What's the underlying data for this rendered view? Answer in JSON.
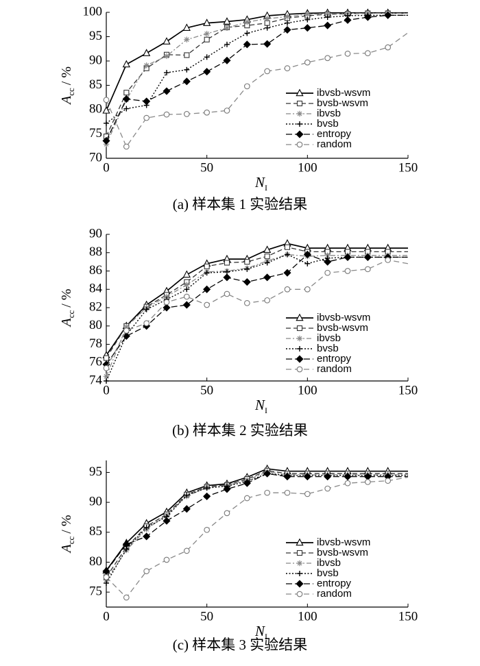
{
  "chart_data": [
    {
      "type": "line",
      "caption": "(a) 样本集 1 实验结果",
      "ylabel_main": "A",
      "ylabel_sub": "cc",
      "ylabel_unit": "/ %",
      "xlabel_main": "N",
      "xlabel_sub": "I",
      "xlim": [
        0,
        150
      ],
      "ylim": [
        70,
        100
      ],
      "xticks": [
        0,
        50,
        100,
        150
      ],
      "yticks": [
        70,
        75,
        80,
        85,
        90,
        95,
        100
      ],
      "x": [
        0,
        10,
        20,
        30,
        40,
        50,
        60,
        70,
        80,
        90,
        100,
        110,
        120,
        130,
        140,
        150
      ],
      "series": [
        {
          "name": "ibvsb-wsvm",
          "values": [
            79.8,
            89.3,
            91.6,
            94.0,
            96.8,
            97.8,
            98.1,
            98.5,
            99.3,
            99.6,
            99.8,
            99.9,
            99.9,
            99.9,
            99.9,
            99.9
          ]
        },
        {
          "name": "bvsb-wsvm",
          "values": [
            74.5,
            83.5,
            88.5,
            91.3,
            91.2,
            94.4,
            96.9,
            97.3,
            97.8,
            98.8,
            99.3,
            99.6,
            99.7,
            99.8,
            99.8,
            99.8
          ]
        },
        {
          "name": "ibvsb",
          "values": [
            72.9,
            82.0,
            89.1,
            91.0,
            94.4,
            95.6,
            96.8,
            98.0,
            98.7,
            99.1,
            99.6,
            99.7,
            99.8,
            99.8,
            99.8,
            99.8
          ]
        },
        {
          "name": "bvsb",
          "values": [
            77.2,
            80.2,
            80.9,
            87.6,
            88.2,
            90.8,
            93.4,
            95.7,
            96.8,
            97.8,
            98.5,
            99.0,
            99.3,
            99.4,
            99.4,
            99.4
          ]
        },
        {
          "name": "entropy",
          "values": [
            73.6,
            82.2,
            81.7,
            83.8,
            85.8,
            87.8,
            90.1,
            93.4,
            93.5,
            96.4,
            96.8,
            97.3,
            98.4,
            99.0,
            99.4,
            99.4
          ]
        },
        {
          "name": "random",
          "values": [
            82.0,
            72.4,
            78.3,
            79.0,
            79.1,
            79.4,
            79.8,
            84.8,
            87.9,
            88.5,
            89.7,
            90.6,
            91.5,
            91.6,
            92.8,
            95.8
          ]
        }
      ]
    },
    {
      "type": "line",
      "caption": "(b) 样本集 2 实验结果",
      "ylabel_main": "A",
      "ylabel_sub": "cc",
      "ylabel_unit": "/ %",
      "xlabel_main": "N",
      "xlabel_sub": "I",
      "xlim": [
        0,
        150
      ],
      "ylim": [
        74,
        90
      ],
      "xticks": [
        0,
        50,
        100,
        150
      ],
      "yticks": [
        74,
        76,
        78,
        80,
        82,
        84,
        86,
        88,
        90
      ],
      "x": [
        0,
        10,
        20,
        30,
        40,
        50,
        60,
        70,
        80,
        90,
        100,
        110,
        120,
        130,
        140,
        150
      ],
      "series": [
        {
          "name": "ibvsb-wsvm",
          "values": [
            76.8,
            80.0,
            82.3,
            83.8,
            85.6,
            86.8,
            87.3,
            87.3,
            88.3,
            89.0,
            88.5,
            88.5,
            88.5,
            88.5,
            88.5,
            88.5
          ]
        },
        {
          "name": "bvsb-wsvm",
          "values": [
            76.5,
            80.0,
            82.1,
            83.4,
            84.8,
            86.5,
            86.9,
            87.0,
            87.6,
            88.6,
            88.1,
            88.1,
            88.1,
            88.1,
            88.1,
            88.1
          ]
        },
        {
          "name": "ibvsb",
          "values": [
            74.5,
            79.9,
            82.0,
            83.2,
            84.5,
            85.9,
            86.0,
            86.3,
            87.1,
            87.8,
            87.6,
            87.7,
            87.7,
            87.7,
            87.7,
            87.7
          ]
        },
        {
          "name": "bvsb",
          "values": [
            74.0,
            79.0,
            81.8,
            82.9,
            84.0,
            85.8,
            85.9,
            86.2,
            86.9,
            87.8,
            86.8,
            87.4,
            87.5,
            87.5,
            87.5,
            87.5
          ]
        },
        {
          "name": "entropy",
          "values": [
            75.8,
            78.9,
            80.0,
            82.0,
            82.3,
            84.0,
            85.3,
            84.8,
            85.3,
            85.8,
            87.8,
            87.0,
            87.5,
            87.5,
            87.5,
            87.5
          ]
        },
        {
          "name": "random",
          "values": [
            75.4,
            79.5,
            80.3,
            82.6,
            83.2,
            82.3,
            83.5,
            82.5,
            82.8,
            84.0,
            84.0,
            85.8,
            86.0,
            86.2,
            87.2,
            86.8
          ]
        }
      ]
    },
    {
      "type": "line",
      "caption": "(c) 样本集 3 实验结果",
      "ylabel_main": "A",
      "ylabel_sub": "cc",
      "ylabel_unit": "/ %",
      "xlabel_main": "N",
      "xlabel_sub": "I",
      "xlim": [
        0,
        150
      ],
      "ylim": [
        72.5,
        97
      ],
      "xticks": [
        0,
        50,
        100,
        150
      ],
      "yticks": [
        75,
        80,
        85,
        90,
        95
      ],
      "x": [
        0,
        10,
        20,
        30,
        40,
        50,
        60,
        70,
        80,
        90,
        100,
        110,
        120,
        130,
        140,
        150
      ],
      "series": [
        {
          "name": "ibvsb-wsvm",
          "values": [
            78.6,
            83.2,
            86.5,
            88.4,
            91.6,
            92.8,
            93.1,
            94.2,
            95.6,
            95.2,
            95.2,
            95.2,
            95.2,
            95.2,
            95.2,
            95.2
          ]
        },
        {
          "name": "bvsb-wsvm",
          "values": [
            77.5,
            82.5,
            86.0,
            88.0,
            91.3,
            92.6,
            92.9,
            93.9,
            95.3,
            94.8,
            94.8,
            94.8,
            94.8,
            94.8,
            94.8,
            94.8
          ]
        },
        {
          "name": "ibvsb",
          "values": [
            77.0,
            82.0,
            85.5,
            87.9,
            91.0,
            92.5,
            92.8,
            93.7,
            95.1,
            94.6,
            94.6,
            94.6,
            94.6,
            94.6,
            94.6,
            94.6
          ]
        },
        {
          "name": "bvsb",
          "values": [
            76.5,
            82.2,
            85.8,
            87.6,
            91.2,
            92.4,
            92.7,
            93.5,
            94.8,
            94.5,
            94.5,
            94.5,
            94.5,
            94.5,
            94.5,
            94.5
          ]
        },
        {
          "name": "entropy",
          "values": [
            78.5,
            83.0,
            84.3,
            86.9,
            88.9,
            91.0,
            92.2,
            93.2,
            94.8,
            94.3,
            94.3,
            94.3,
            94.3,
            94.3,
            94.3,
            94.3
          ]
        },
        {
          "name": "random",
          "values": [
            77.5,
            74.1,
            78.5,
            80.4,
            81.9,
            85.4,
            88.2,
            90.7,
            91.6,
            91.6,
            91.4,
            92.3,
            93.2,
            93.4,
            93.6,
            94.2
          ]
        }
      ]
    }
  ]
}
